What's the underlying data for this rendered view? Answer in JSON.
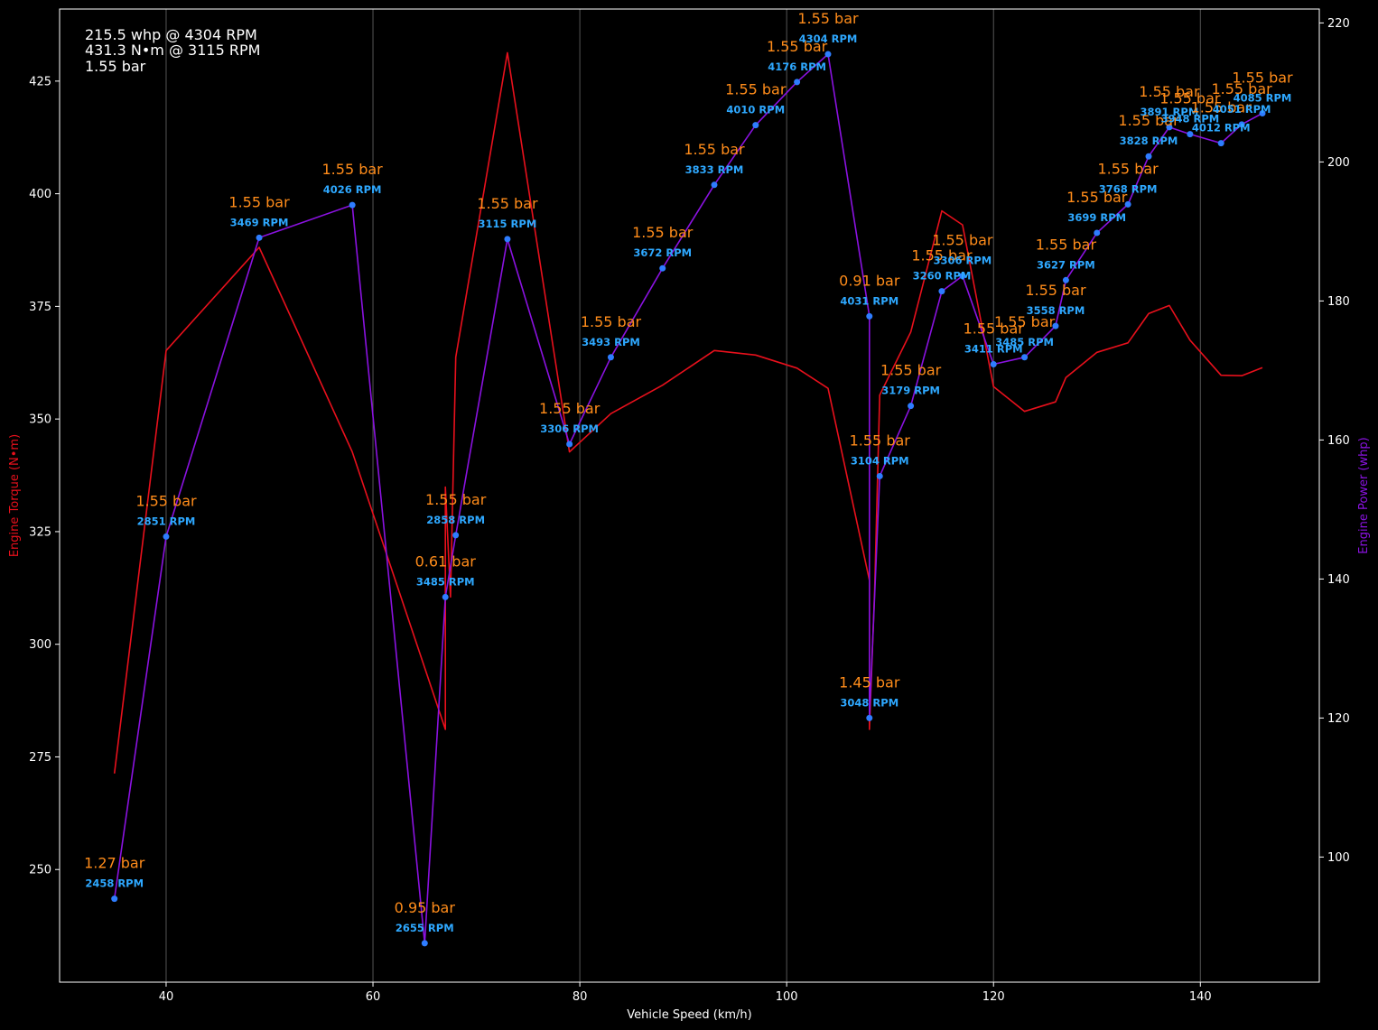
{
  "chart_data": {
    "type": "line",
    "xlabel": "Vehicle Speed (km/h)",
    "ylabel_left": "Engine Torque (N•m)",
    "ylabel_right": "Engine Power (whp)",
    "xlim": [
      29.7,
      151.5
    ],
    "ylim_left": [
      225,
      441
    ],
    "ylim_right": [
      82,
      222
    ],
    "x_ticks": [
      40,
      60,
      80,
      100,
      120,
      140
    ],
    "y_left_ticks": [
      250,
      275,
      300,
      325,
      350,
      375,
      400,
      425
    ],
    "y_right_ticks": [
      100,
      120,
      140,
      160,
      180,
      200,
      220
    ],
    "vertical_grid": true,
    "colors": {
      "torque": "#e8101c",
      "power": "#8a12e0",
      "marker": "#2e7dff",
      "boost_label": "#ff8c1a",
      "rpm_label": "#2ea8ff"
    },
    "summary": [
      "215.5 whp @ 4304 RPM",
      "431.3 N•m @ 3115 RPM",
      "1.55 bar"
    ],
    "torque_series": {
      "x": [
        35,
        40,
        49,
        58,
        67,
        67,
        67.5,
        68,
        73,
        79,
        83,
        88,
        93,
        97,
        101,
        104,
        108,
        108,
        108.5,
        109,
        112,
        115,
        117,
        120,
        123,
        126,
        127,
        130,
        133,
        135,
        137,
        139,
        142,
        144,
        146
      ],
      "y": [
        271.3,
        365.2,
        388.1,
        342.7,
        281.1,
        334.9,
        310.5,
        363.7,
        431.3,
        342.7,
        351.2,
        357.5,
        365.2,
        364.2,
        361.3,
        356.8,
        314.2,
        281.1,
        311.5,
        355.3,
        369.3,
        396.2,
        393.1,
        357.2,
        351.7,
        353.8,
        359.2,
        364.8,
        366.9,
        373.4,
        375.2,
        367.5,
        359.7,
        359.6,
        361.4
      ]
    },
    "power_series": {
      "x": [
        35,
        40,
        49,
        58,
        65,
        67,
        68,
        73,
        79,
        83,
        88,
        93,
        97,
        101,
        104,
        108,
        108,
        109,
        112,
        115,
        117,
        120,
        123,
        126,
        127,
        130,
        133,
        135,
        137,
        139,
        142,
        144,
        146
      ],
      "y": [
        94.0,
        146.1,
        189.1,
        193.8,
        87.6,
        137.4,
        146.3,
        188.9,
        159.4,
        171.9,
        184.7,
        196.7,
        205.3,
        211.5,
        215.5,
        177.8,
        120.0,
        154.8,
        164.9,
        181.4,
        183.6,
        170.9,
        171.9,
        176.4,
        183.0,
        189.8,
        193.9,
        200.8,
        205.0,
        204.0,
        202.7,
        205.4,
        207.0
      ],
      "rpm": [
        "2458 RPM",
        "2851 RPM",
        "3469 RPM",
        "4026 RPM",
        "2655 RPM",
        "3485 RPM",
        "2858 RPM",
        "3115 RPM",
        "3306 RPM",
        "3493 RPM",
        "3672 RPM",
        "3833 RPM",
        "4010 RPM",
        "4176 RPM",
        "4304 RPM",
        "4031 RPM",
        "3048 RPM",
        "3104 RPM",
        "3179 RPM",
        "3260 RPM",
        "3306 RPM",
        "3411 RPM",
        "3485 RPM",
        "3558 RPM",
        "3627 RPM",
        "3699 RPM",
        "3768 RPM",
        "3828 RPM",
        "3891 RPM",
        "3948 RPM",
        "4012 RPM",
        "4051 RPM",
        "4085 RPM"
      ],
      "boost": [
        "1.27 bar",
        "1.55 bar",
        "1.55 bar",
        "1.55 bar",
        "0.95 bar",
        "0.61 bar",
        "1.55 bar",
        "1.55 bar",
        "1.55 bar",
        "1.55 bar",
        "1.55 bar",
        "1.55 bar",
        "1.55 bar",
        "1.55 bar",
        "1.55 bar",
        "0.91 bar",
        "1.45 bar",
        "1.55 bar",
        "1.55 bar",
        "1.55 bar",
        "1.55 bar",
        "1.55 bar",
        "1.55 bar",
        "1.55 bar",
        "1.55 bar",
        "1.55 bar",
        "1.55 bar",
        "1.55 bar",
        "1.55 bar",
        "1.55 bar",
        "1.55 bar",
        "1.55 bar",
        "1.55 bar"
      ]
    }
  }
}
